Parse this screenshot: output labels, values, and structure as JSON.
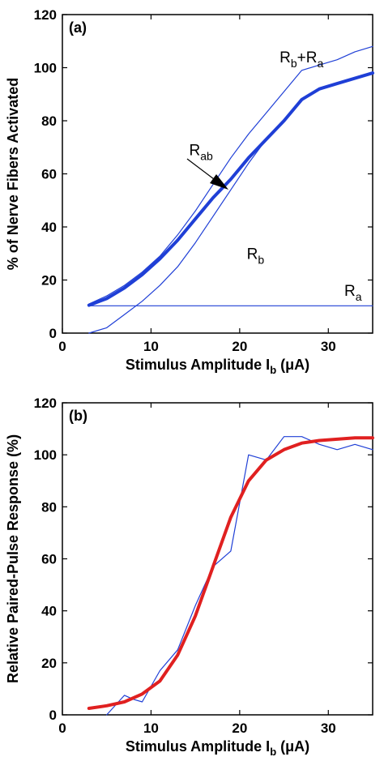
{
  "chart_data": [
    {
      "type": "line",
      "panel_label": "(a)",
      "xlabel_main": "Stimulus Amplitude I",
      "xlabel_sub": "b",
      "xlabel_unit": " (μA)",
      "ylabel": "% of Nerve Fibers Activated",
      "xlim": [
        0,
        35
      ],
      "ylim": [
        0,
        120
      ],
      "xticks": [
        0,
        10,
        20,
        30
      ],
      "yticks": [
        0,
        20,
        40,
        60,
        80,
        100,
        120
      ],
      "grid": false,
      "annotations": {
        "rbra": {
          "main": "R",
          "sub1": "b",
          "plus": "+R",
          "sub2": "a"
        },
        "rab": {
          "main": "R",
          "sub": "ab"
        },
        "rb": {
          "main": "R",
          "sub": "b"
        },
        "ra": {
          "main": "R",
          "sub": "a"
        }
      },
      "series": [
        {
          "key": "rab",
          "color": "#1f3fd6",
          "width": "thick",
          "x": [
            3,
            5,
            7,
            9,
            11,
            13,
            15,
            17,
            19,
            21,
            23,
            25,
            27,
            29,
            31,
            33,
            35
          ],
          "y": [
            10.5,
            13,
            17,
            22,
            28,
            35,
            43,
            51,
            58,
            66,
            73,
            80,
            88,
            92,
            94,
            96,
            98
          ]
        },
        {
          "key": "rbra",
          "color": "#1f3fd6",
          "width": "thin",
          "x": [
            3,
            5,
            7,
            9,
            11,
            13,
            15,
            17,
            19,
            21,
            23,
            25,
            27,
            29,
            31,
            33,
            35
          ],
          "y": [
            11,
            14,
            18,
            23,
            29,
            37,
            46,
            56,
            66,
            75,
            83,
            91,
            99,
            101,
            103,
            106,
            108
          ]
        },
        {
          "key": "rb",
          "color": "#1f3fd6",
          "width": "thin",
          "x": [
            3,
            5,
            7,
            9,
            11,
            13,
            15,
            17,
            19,
            21,
            23,
            25,
            27,
            29,
            31,
            33,
            35
          ],
          "y": [
            0,
            2,
            7,
            12,
            18,
            25,
            34,
            44,
            54,
            64,
            73,
            80,
            88,
            92,
            94,
            96,
            98
          ]
        },
        {
          "key": "ra",
          "color": "#1f3fd6",
          "width": "thin",
          "x": [
            3,
            35
          ],
          "y": [
            10.3,
            10.3
          ]
        }
      ]
    },
    {
      "type": "line",
      "panel_label": "(b)",
      "xlabel_main": "Stimulus Amplitude I",
      "xlabel_sub": "b",
      "xlabel_unit": " (μA)",
      "ylabel": "Relative Paired-Pulse Response (%)",
      "xlim": [
        0,
        35
      ],
      "ylim": [
        0,
        120
      ],
      "xticks": [
        0,
        10,
        20,
        30
      ],
      "yticks": [
        0,
        20,
        40,
        60,
        80,
        100,
        120
      ],
      "grid": false,
      "series": [
        {
          "key": "measured",
          "color": "#1f3fd6",
          "width": "thin",
          "x": [
            5,
            7,
            8,
            9,
            11,
            13,
            15,
            17,
            19,
            21,
            23,
            25,
            27,
            29,
            31,
            33,
            35
          ],
          "y": [
            0,
            7.5,
            6,
            5,
            17,
            25,
            42,
            57,
            63,
            100,
            98,
            107,
            107,
            104,
            102,
            104,
            102
          ]
        },
        {
          "key": "fit",
          "color": "#e02020",
          "width": "thick",
          "x": [
            3,
            5,
            7,
            9,
            11,
            13,
            15,
            17,
            19,
            21,
            23,
            25,
            27,
            29,
            31,
            33,
            35
          ],
          "y": [
            2.5,
            3.5,
            5,
            8,
            13,
            23,
            38,
            57,
            76,
            90,
            98,
            102,
            104.5,
            105.5,
            106,
            106.5,
            106.5
          ]
        }
      ]
    }
  ]
}
